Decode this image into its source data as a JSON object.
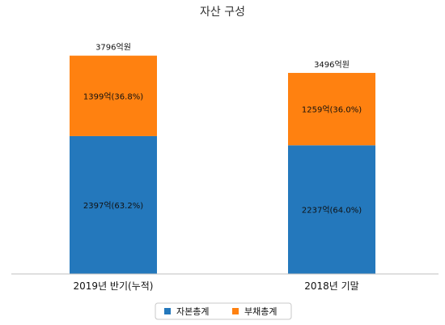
{
  "chart_data": {
    "type": "bar",
    "stacked": true,
    "title": "자산 구성",
    "categories": [
      "2019년 반기(누적)",
      "2018년 기말"
    ],
    "series": [
      {
        "name": "자본총계",
        "color": "#2478BC",
        "values": [
          2397,
          2237
        ],
        "labels": [
          "2397억(63.2%)",
          "2237억(64.0%)"
        ]
      },
      {
        "name": "부채총계",
        "color": "#FF8110",
        "values": [
          1399,
          1259
        ],
        "labels": [
          "1399억(36.8%)",
          "1259억(36.0%)"
        ]
      }
    ],
    "totals": [
      3796,
      3496
    ],
    "total_labels": [
      "3796억원",
      "3496억원"
    ],
    "ylim": [
      0,
      4200
    ],
    "grid": false,
    "legend": "bottom",
    "xlabel": "",
    "ylabel": ""
  }
}
